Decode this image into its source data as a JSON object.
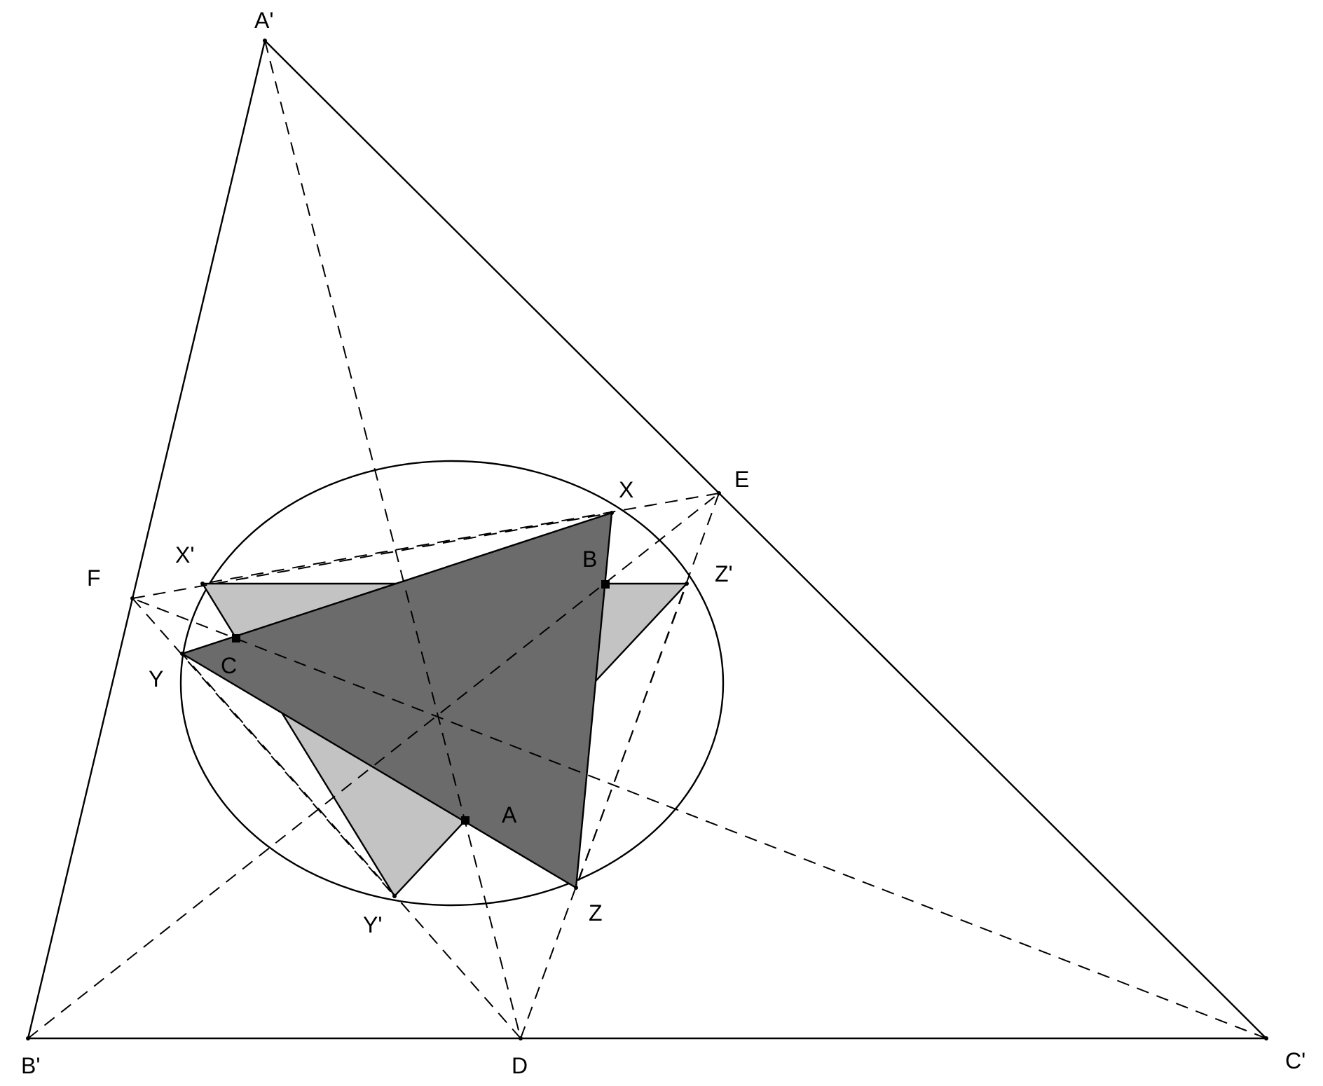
{
  "labels": {
    "A_prime": "A'",
    "B_prime": "B'",
    "C_prime": "C'",
    "D": "D",
    "E": "E",
    "F": "F",
    "X": "X",
    "X_prime": "X'",
    "Y": "Y",
    "Y_prime": "Y'",
    "Z": "Z",
    "Z_prime": "Z'",
    "A": "A",
    "B": "B",
    "C": "C"
  },
  "colors": {
    "light_fill": "#c3c3c3",
    "dark_fill": "#6b6b6b",
    "stroke": "#000000"
  }
}
